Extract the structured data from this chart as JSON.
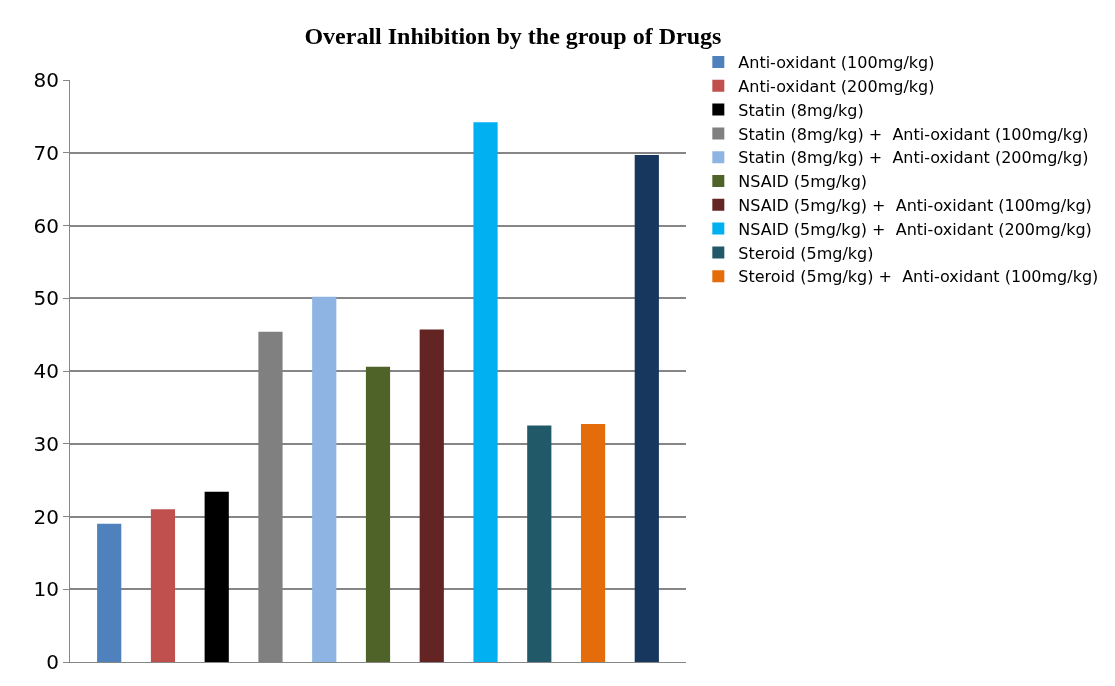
{
  "chart_data": {
    "type": "bar",
    "title": "Overall Inhibition by the group of Drugs",
    "categories": [
      null
    ],
    "series": [
      {
        "name": "Anti-oxidant (100mg/kg)",
        "color": "#4f81bd",
        "values": [
          19
        ]
      },
      {
        "name": "Anti-oxidant (200mg/kg)",
        "color": "#c0504d",
        "values": [
          21
        ]
      },
      {
        "name": "Statin (8mg/kg)",
        "color": "#000000",
        "values": [
          23.4
        ]
      },
      {
        "name": "Statin (8mg/kg) +  Anti-oxidant (100mg/kg)",
        "color": "#808080",
        "values": [
          45.4
        ]
      },
      {
        "name": "Statin (8mg/kg) +  Anti-oxidant (200mg/kg)",
        "color": "#8eb4e3",
        "values": [
          50.2
        ]
      },
      {
        "name": "NSAID (5mg/kg)",
        "color": "#4f6228",
        "values": [
          40.6
        ]
      },
      {
        "name": "NSAID (5mg/kg) +  Anti-oxidant (100mg/kg)",
        "color": "#632423",
        "values": [
          45.7
        ]
      },
      {
        "name": "NSAID (5mg/kg) +  Anti-oxidant (200mg/kg)",
        "color": "#00b0f0",
        "values": [
          74.2
        ]
      },
      {
        "name": "Steroid (5mg/kg)",
        "color": "#215968",
        "values": [
          32.5
        ]
      },
      {
        "name": "Steroid (5mg/kg) +  Anti-oxidant (100mg/kg)",
        "color": "#e46c0a",
        "values": [
          32.7
        ]
      },
      {
        "color": "#17375e",
        "values": [
          69.7
        ]
      }
    ],
    "ylim": [
      0,
      80
    ],
    "yticks": [
      0,
      10,
      20,
      30,
      40,
      50,
      60,
      70,
      80
    ],
    "grid": "y",
    "legend": "right",
    "tick_labels": "y"
  }
}
